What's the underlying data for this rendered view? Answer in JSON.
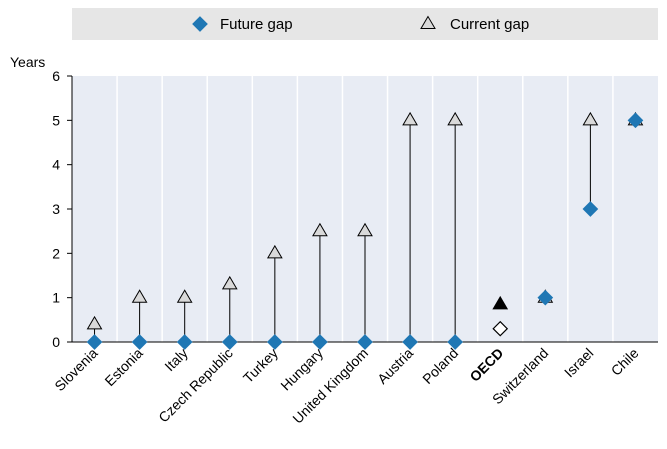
{
  "chart_data": {
    "type": "scatter",
    "ylabel": "Years",
    "ylim": [
      0,
      6
    ],
    "yticks": [
      0,
      1,
      2,
      3,
      4,
      5,
      6
    ],
    "categories": [
      "Slovenia",
      "Estonia",
      "Italy",
      "Czech Republic",
      "Turkey",
      "Hungary",
      "United Kingdom",
      "Austria",
      "Poland",
      "OECD",
      "Switzerland",
      "Israel",
      "Chile"
    ],
    "highlight_category": "OECD",
    "series": [
      {
        "name": "Future gap",
        "marker": "diamond",
        "color": "#1f77b4",
        "values": [
          0,
          0,
          0,
          0,
          0,
          0,
          0,
          0,
          0,
          0.3,
          1,
          3,
          5
        ]
      },
      {
        "name": "Current gap",
        "marker": "triangle",
        "color": "#d9d9d9",
        "values": [
          0.4,
          1,
          1,
          1.3,
          2,
          2.5,
          2.5,
          5,
          5,
          0.85,
          1,
          5,
          5
        ]
      }
    ],
    "legend_position": "top",
    "grid": "vertical"
  }
}
